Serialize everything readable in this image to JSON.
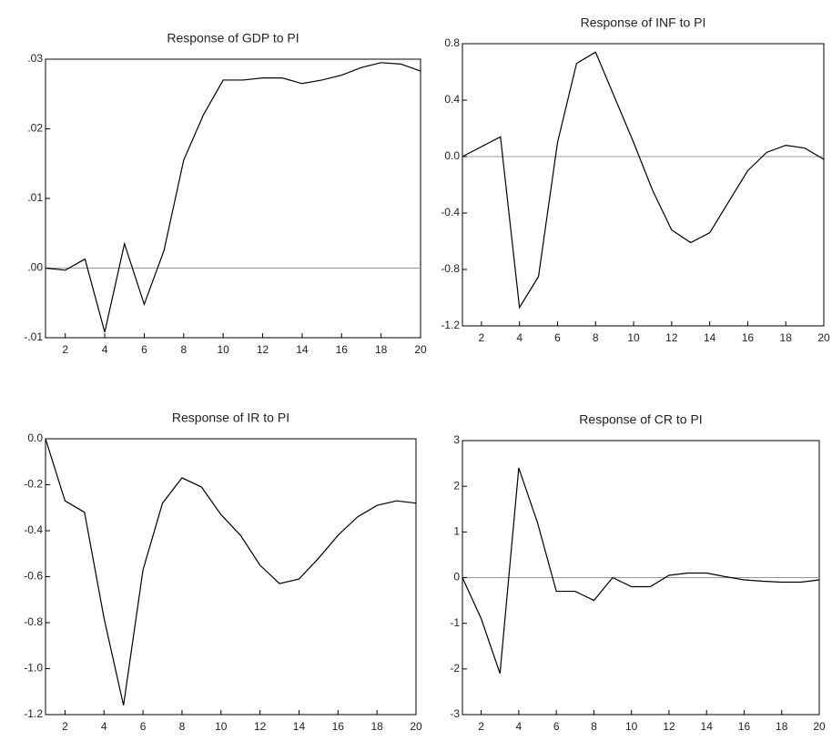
{
  "chart_data": [
    {
      "type": "line",
      "title": "Response of GDP to PI",
      "color": "#000000",
      "x": [
        1,
        2,
        3,
        4,
        5,
        6,
        7,
        8,
        9,
        10,
        11,
        12,
        13,
        14,
        15,
        16,
        17,
        18,
        19,
        20
      ],
      "values": [
        0.0,
        -0.0003,
        0.0013,
        -0.0092,
        0.0035,
        -0.0052,
        0.0025,
        0.0155,
        0.022,
        0.027,
        0.027,
        0.0273,
        0.0273,
        0.0265,
        0.027,
        0.0277,
        0.0288,
        0.0295,
        0.0293,
        0.0283
      ],
      "xlim": [
        1,
        20
      ],
      "xticks": [
        2,
        4,
        6,
        8,
        10,
        12,
        14,
        16,
        18,
        20
      ],
      "ylim": [
        -0.01,
        0.03
      ],
      "yticks": [
        {
          "value": -0.01,
          "label": "-.01"
        },
        {
          "value": 0,
          "label": ".00"
        },
        {
          "value": 0.01,
          "label": ".01"
        },
        {
          "value": 0.02,
          "label": ".02"
        },
        {
          "value": 0.03,
          "label": ".03"
        }
      ]
    },
    {
      "type": "line",
      "title": "Response of INF to PI",
      "color": "#000000",
      "x": [
        1,
        2,
        3,
        4,
        5,
        6,
        7,
        8,
        9,
        10,
        11,
        12,
        13,
        14,
        15,
        16,
        17,
        18,
        19,
        20
      ],
      "values": [
        0.0,
        0.07,
        0.14,
        -1.07,
        -0.85,
        0.1,
        0.66,
        0.74,
        0.42,
        0.1,
        -0.24,
        -0.52,
        -0.61,
        -0.54,
        -0.32,
        -0.1,
        0.03,
        0.08,
        0.06,
        -0.02
      ],
      "xlim": [
        1,
        20
      ],
      "xticks": [
        2,
        4,
        6,
        8,
        10,
        12,
        14,
        16,
        18,
        20
      ],
      "ylim": [
        -1.2,
        0.8
      ],
      "yticks": [
        -1.2,
        -0.8,
        -0.4,
        {
          "value": 0,
          "label": "0.0"
        },
        0.4,
        0.8
      ]
    },
    {
      "type": "line",
      "title": "Response of IR to PI",
      "color": "#000000",
      "x": [
        1,
        2,
        3,
        4,
        5,
        6,
        7,
        8,
        9,
        10,
        11,
        12,
        13,
        14,
        15,
        16,
        17,
        18,
        19,
        20
      ],
      "values": [
        0.0,
        -0.27,
        -0.32,
        -0.78,
        -1.16,
        -0.57,
        -0.28,
        -0.17,
        -0.21,
        -0.33,
        -0.42,
        -0.55,
        -0.63,
        -0.61,
        -0.52,
        -0.42,
        -0.34,
        -0.29,
        -0.27,
        -0.28
      ],
      "xlim": [
        1,
        20
      ],
      "xticks": [
        2,
        4,
        6,
        8,
        10,
        12,
        14,
        16,
        18,
        20
      ],
      "ylim": [
        -1.2,
        0
      ],
      "yticks": [
        -1.2,
        {
          "value": -1,
          "label": "-1.0"
        },
        -0.8,
        -0.6,
        -0.4,
        -0.2,
        {
          "value": 0,
          "label": "0.0"
        }
      ]
    },
    {
      "type": "line",
      "title": "Response of CR to PI",
      "color": "#000000",
      "x": [
        1,
        2,
        3,
        4,
        5,
        6,
        7,
        8,
        9,
        10,
        11,
        12,
        13,
        14,
        15,
        16,
        17,
        18,
        19,
        20
      ],
      "values": [
        0.0,
        -0.9,
        -2.1,
        2.4,
        1.2,
        -0.3,
        -0.3,
        -0.5,
        0.0,
        -0.2,
        -0.2,
        0.05,
        0.1,
        0.1,
        0.02,
        -0.05,
        -0.08,
        -0.1,
        -0.1,
        -0.05
      ],
      "xlim": [
        1,
        20
      ],
      "xticks": [
        2,
        4,
        6,
        8,
        10,
        12,
        14,
        16,
        18,
        20
      ],
      "ylim": [
        -3,
        3
      ],
      "yticks": [
        -3,
        -2,
        -1,
        0,
        1,
        2,
        3
      ]
    }
  ]
}
